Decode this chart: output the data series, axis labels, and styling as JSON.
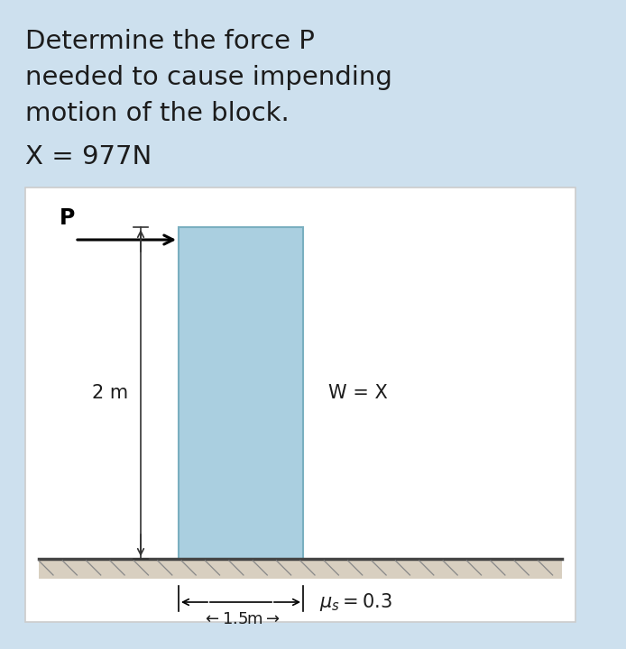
{
  "bg_color": "#cde0ee",
  "diagram_bg": "#ffffff",
  "block_color": "#aacfe0",
  "block_edge_color": "#7aafc0",
  "title_lines": [
    "Determine the force P",
    "needed to cause impending",
    "motion of the block."
  ],
  "x_label": "X = 977N",
  "P_label": "P",
  "height_label": "2 m",
  "width_label": "−1.5m—",
  "W_label": "W = X",
  "mu_label": "$\\mu_s = 0.3$",
  "title_fontsize": 21,
  "label_fontsize": 15,
  "small_fontsize": 13
}
